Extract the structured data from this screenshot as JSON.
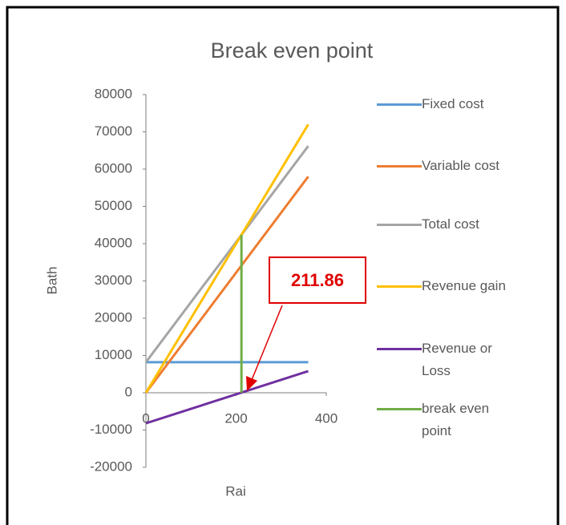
{
  "chart_data": {
    "type": "line",
    "title": "Break even point",
    "x_label": "Rai",
    "y_label": "Bath",
    "xlim": [
      0,
      400
    ],
    "xticks": [
      0,
      200,
      400
    ],
    "ylim": [
      -20000,
      80000
    ],
    "yticks": [
      -20000,
      -10000,
      0,
      10000,
      20000,
      30000,
      40000,
      50000,
      60000,
      70000,
      80000
    ],
    "grid": false,
    "legend": "right",
    "series": [
      {
        "name": "Fixed cost",
        "color": "#5b9bd5",
        "x": [
          0,
          360
        ],
        "values": [
          8200,
          8200
        ]
      },
      {
        "name": "Variable cost",
        "color": "#ed7d31",
        "x": [
          0,
          360
        ],
        "values": [
          0,
          58000
        ]
      },
      {
        "name": "Total cost",
        "color": "#a5a5a5",
        "x": [
          0,
          360
        ],
        "values": [
          8200,
          66200
        ]
      },
      {
        "name": "Revenue gain",
        "color": "#ffc000",
        "x": [
          0,
          360
        ],
        "values": [
          0,
          72000
        ]
      },
      {
        "name": "Revenue or Loss",
        "color": "#7030a0",
        "x": [
          0,
          360
        ],
        "values": [
          -8200,
          5800
        ]
      },
      {
        "name": "break even point",
        "color": "#70ad47",
        "x": [
          211.86,
          211.86
        ],
        "values": [
          0,
          42372
        ]
      }
    ],
    "annotation": "211.86"
  }
}
